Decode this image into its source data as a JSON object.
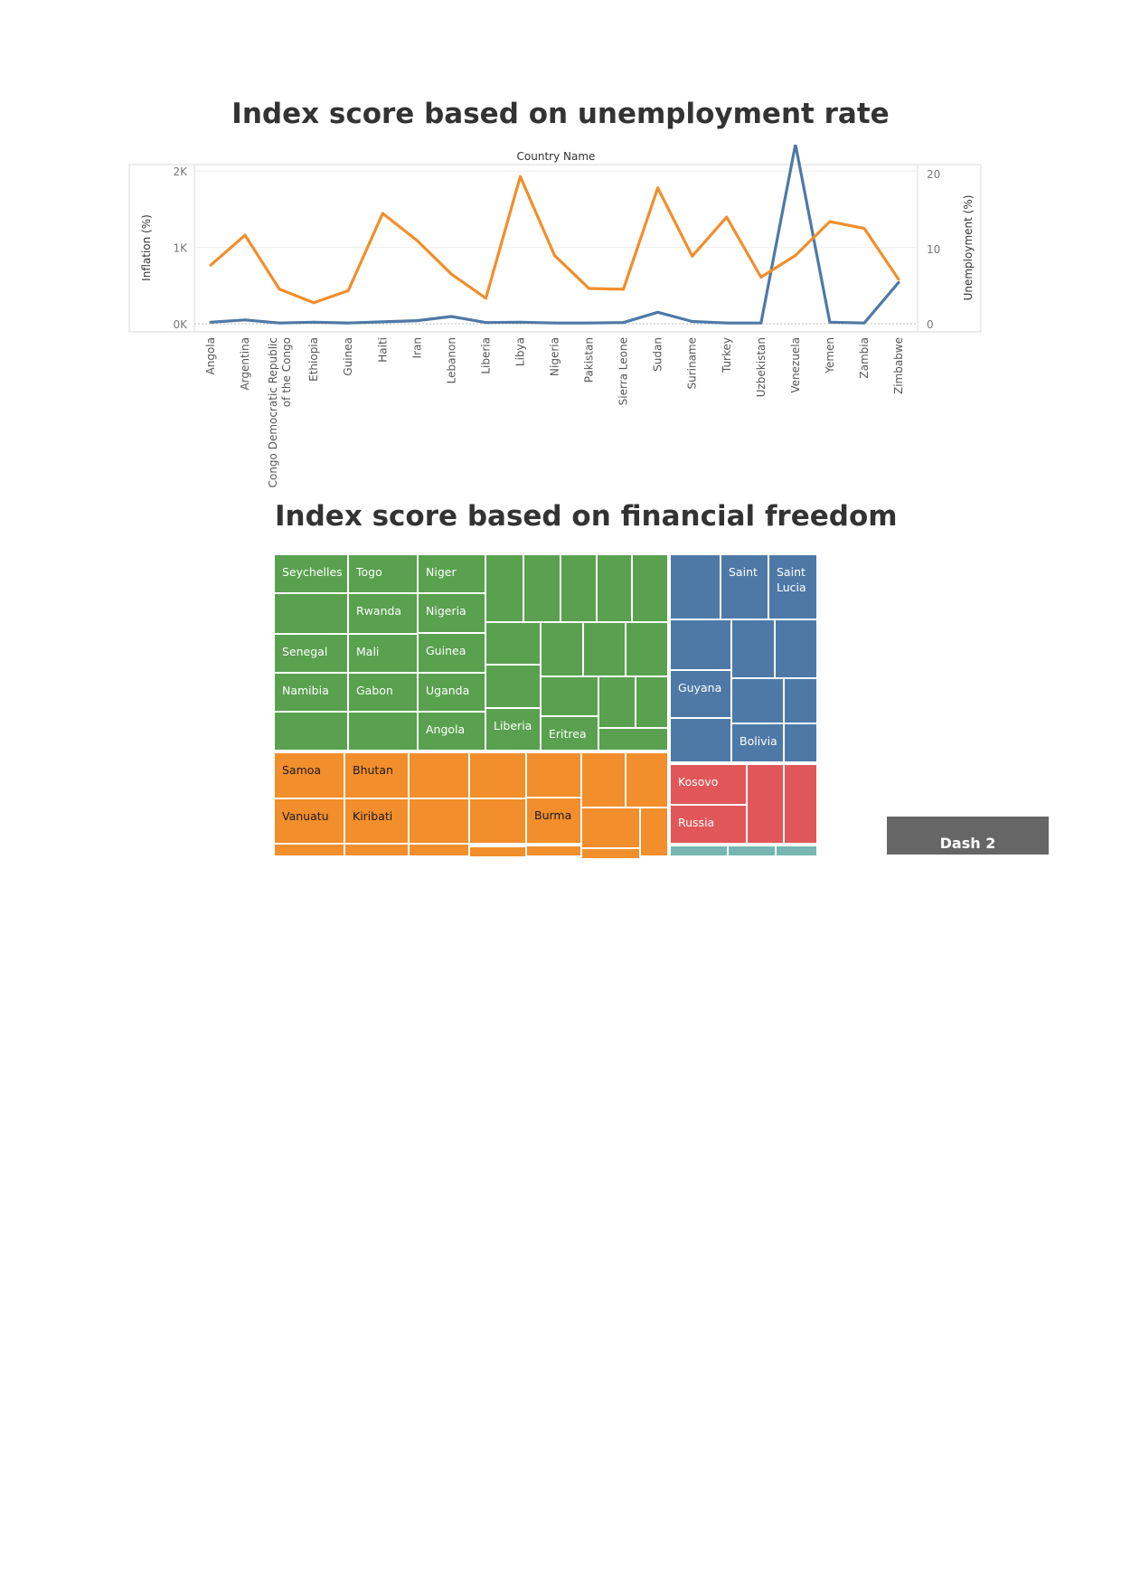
{
  "chart_data": [
    {
      "type": "line",
      "title": "Index score based on unemployment rate",
      "xlabel": "Country Name",
      "ylabel_left": "Inflation (%)",
      "ylabel_right": "Unemployment (%)",
      "left_ticks": [
        "0K",
        "1K",
        "2K"
      ],
      "right_ticks": [
        "0",
        "10",
        "20"
      ],
      "ylim_left": [
        0,
        2500
      ],
      "ylim_right": [
        0,
        21
      ],
      "categories": [
        "Angola",
        "Argentina",
        "Congo Democratic Republic of the Congo",
        "Ethiopia",
        "Guinea",
        "Haiti",
        "Iran",
        "Lebanon",
        "Liberia",
        "Libya",
        "Nigeria",
        "Pakistan",
        "Sierra Leone",
        "Sudan",
        "Suriname",
        "Turkey",
        "Uzbekistan",
        "Venezuela",
        "Yemen",
        "Zambia",
        "Zimbabwe"
      ],
      "category_labels": [
        [
          "Angola"
        ],
        [
          "Argentina"
        ],
        [
          "Congo Democratic Republic",
          "of the Congo"
        ],
        [
          "Ethiopia"
        ],
        [
          "Guinea"
        ],
        [
          "Haiti"
        ],
        [
          "Iran"
        ],
        [
          "Lebanon"
        ],
        [
          "Liberia"
        ],
        [
          "Libya"
        ],
        [
          "Nigeria"
        ],
        [
          "Pakistan"
        ],
        [
          "Sierra Leone"
        ],
        [
          "Sudan"
        ],
        [
          "Suriname"
        ],
        [
          "Turkey"
        ],
        [
          "Uzbekistan"
        ],
        [
          "Venezuela"
        ],
        [
          "Yemen"
        ],
        [
          "Zambia"
        ],
        [
          "Zimbabwe"
        ]
      ],
      "series": [
        {
          "name": "Inflation (%)",
          "axis": "left",
          "color": "#4e79a7",
          "values": [
            20,
            50,
            10,
            20,
            10,
            25,
            40,
            95,
            15,
            20,
            10,
            10,
            15,
            150,
            30,
            10,
            10,
            2350,
            20,
            10,
            540
          ]
        },
        {
          "name": "Unemployment (%)",
          "axis": "right",
          "color": "#f28e2b",
          "values": [
            7.8,
            11.8,
            4.6,
            2.8,
            4.4,
            14.7,
            11.1,
            6.6,
            3.4,
            19.6,
            9.1,
            4.7,
            4.6,
            18.1,
            9.0,
            14.2,
            6.2,
            9.1,
            13.6,
            12.7,
            5.9
          ]
        }
      ]
    },
    {
      "type": "treemap",
      "title": "Index score based on financial freedom",
      "colors": {
        "green": "#59a14f",
        "blue": "#4e79a7",
        "orange": "#f28e2b",
        "red": "#e15759",
        "teal": "#76b7b2"
      },
      "groups": [
        {
          "color": "green",
          "labeled": [
            "Seychelles",
            "Togo",
            "Niger",
            "Rwanda",
            "Nigeria",
            "Senegal",
            "Mali",
            "Guinea",
            "Namibia",
            "Gabon",
            "Uganda",
            "Angola",
            "Liberia",
            "Eritrea"
          ]
        },
        {
          "color": "blue",
          "labeled": [
            "Saint",
            "Saint Lucia",
            "Guyana",
            "Bolivia"
          ]
        },
        {
          "color": "orange",
          "labeled": [
            "Samoa",
            "Bhutan",
            "Vanuatu",
            "Kiribati",
            "Burma"
          ]
        },
        {
          "color": "red",
          "labeled": [
            "Kosovo",
            "Russia"
          ]
        },
        {
          "color": "teal",
          "labeled": []
        }
      ]
    }
  ],
  "button": {
    "label": "Dash 2"
  }
}
